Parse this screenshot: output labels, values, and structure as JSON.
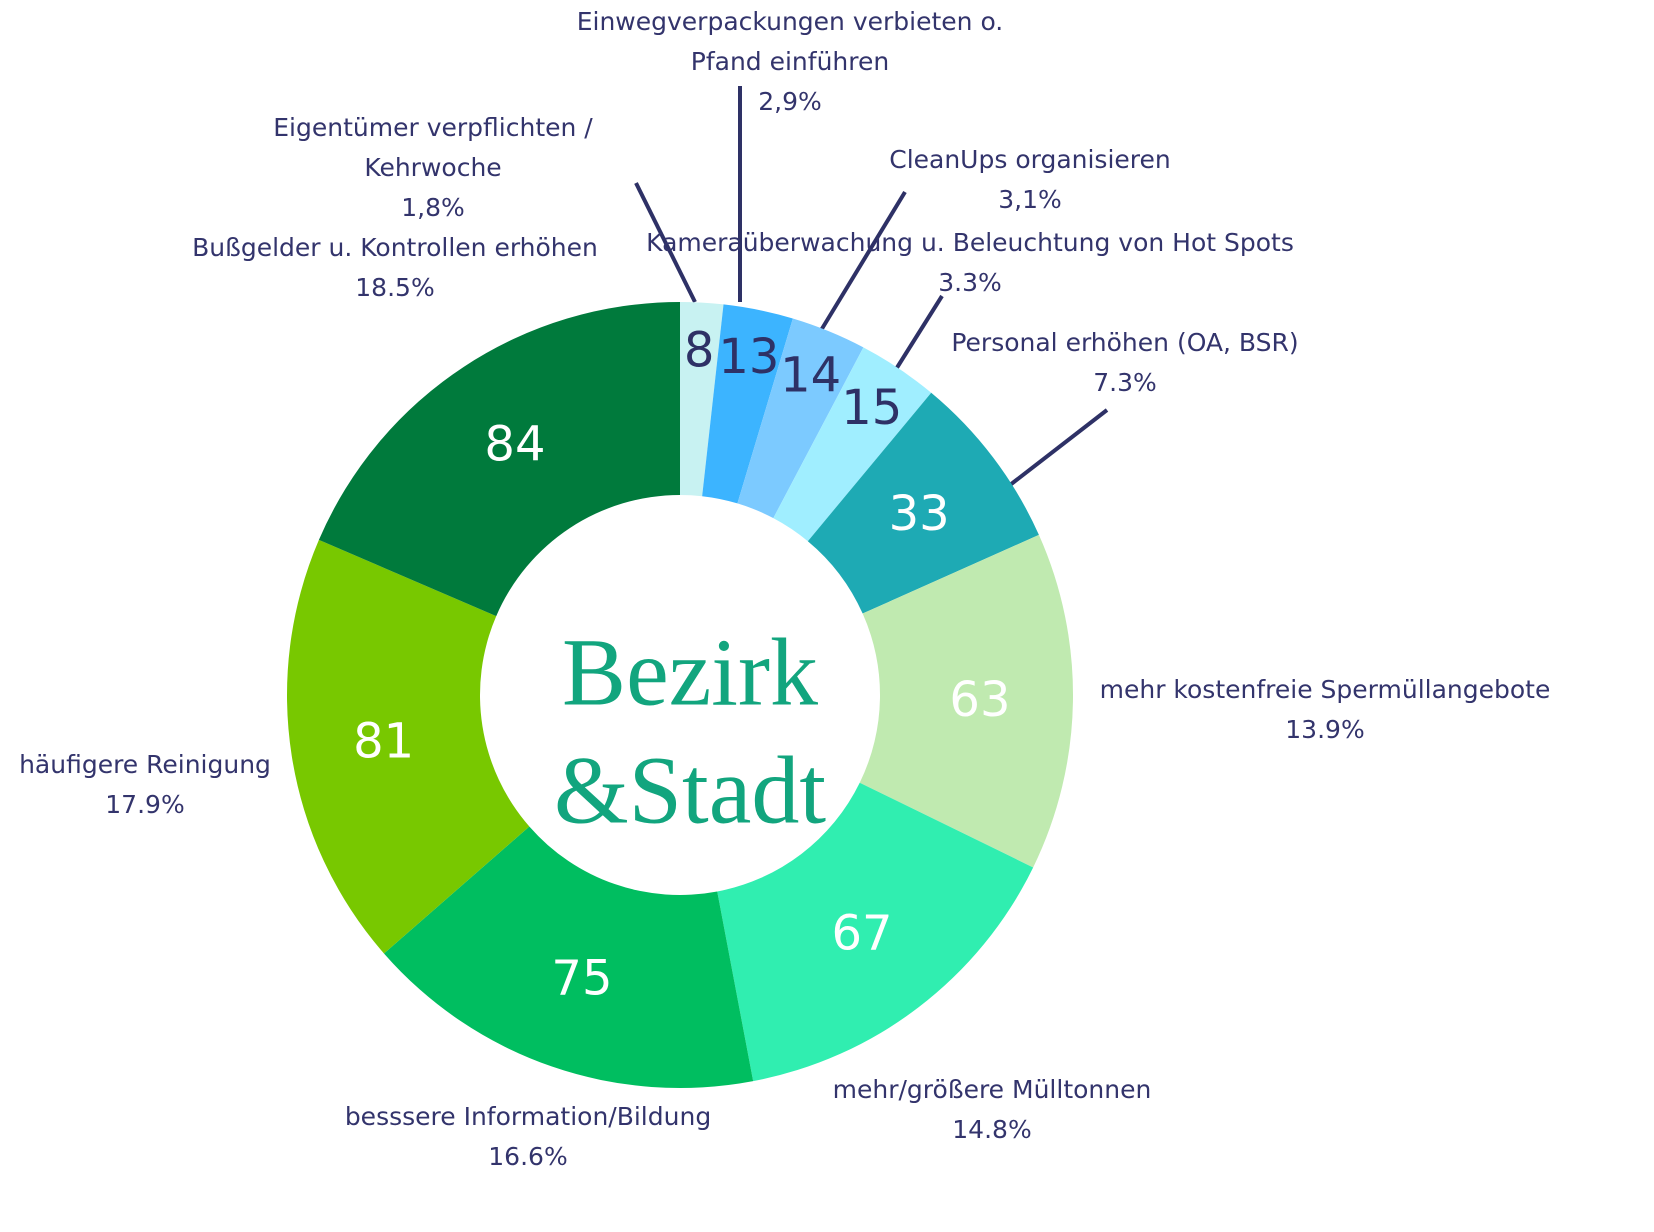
{
  "chart_data": {
    "type": "donut",
    "center_text": [
      "Bezirk",
      "&Stadt"
    ],
    "categories": [
      "Eigentümer verpflichten / Kehrwoche",
      "Einwegverpackungen  verbieten o. Pfand einführen",
      "CleanUps organisieren",
      "Kameraüberwachung u. Beleuchtung von Hot Spots",
      "Personal erhöhen (OA, BSR)",
      "mehr kostenfreie Spermüllangebote",
      "mehr/größere Mülltonnen",
      "besssere Information/Bildung",
      "häufigere Reinigung",
      "Bußgelder u. Kontrollen erhöhen"
    ],
    "values": [
      8,
      13,
      14,
      15,
      33,
      63,
      67,
      75,
      81,
      84
    ],
    "percent_labels": [
      "1,8%",
      "2,9%",
      "3,1%",
      "3.3%",
      "7.3%",
      "13.9%",
      "14.8%",
      "16.6%",
      "17.9%",
      "18.5%"
    ],
    "colors": [
      "#c8f2f2",
      "#3cb4ff",
      "#7ccaff",
      "#a0eeff",
      "#1eaab4",
      "#c0eab0",
      "#30eeb0",
      "#00be60",
      "#78c800",
      "#007a3c"
    ]
  }
}
